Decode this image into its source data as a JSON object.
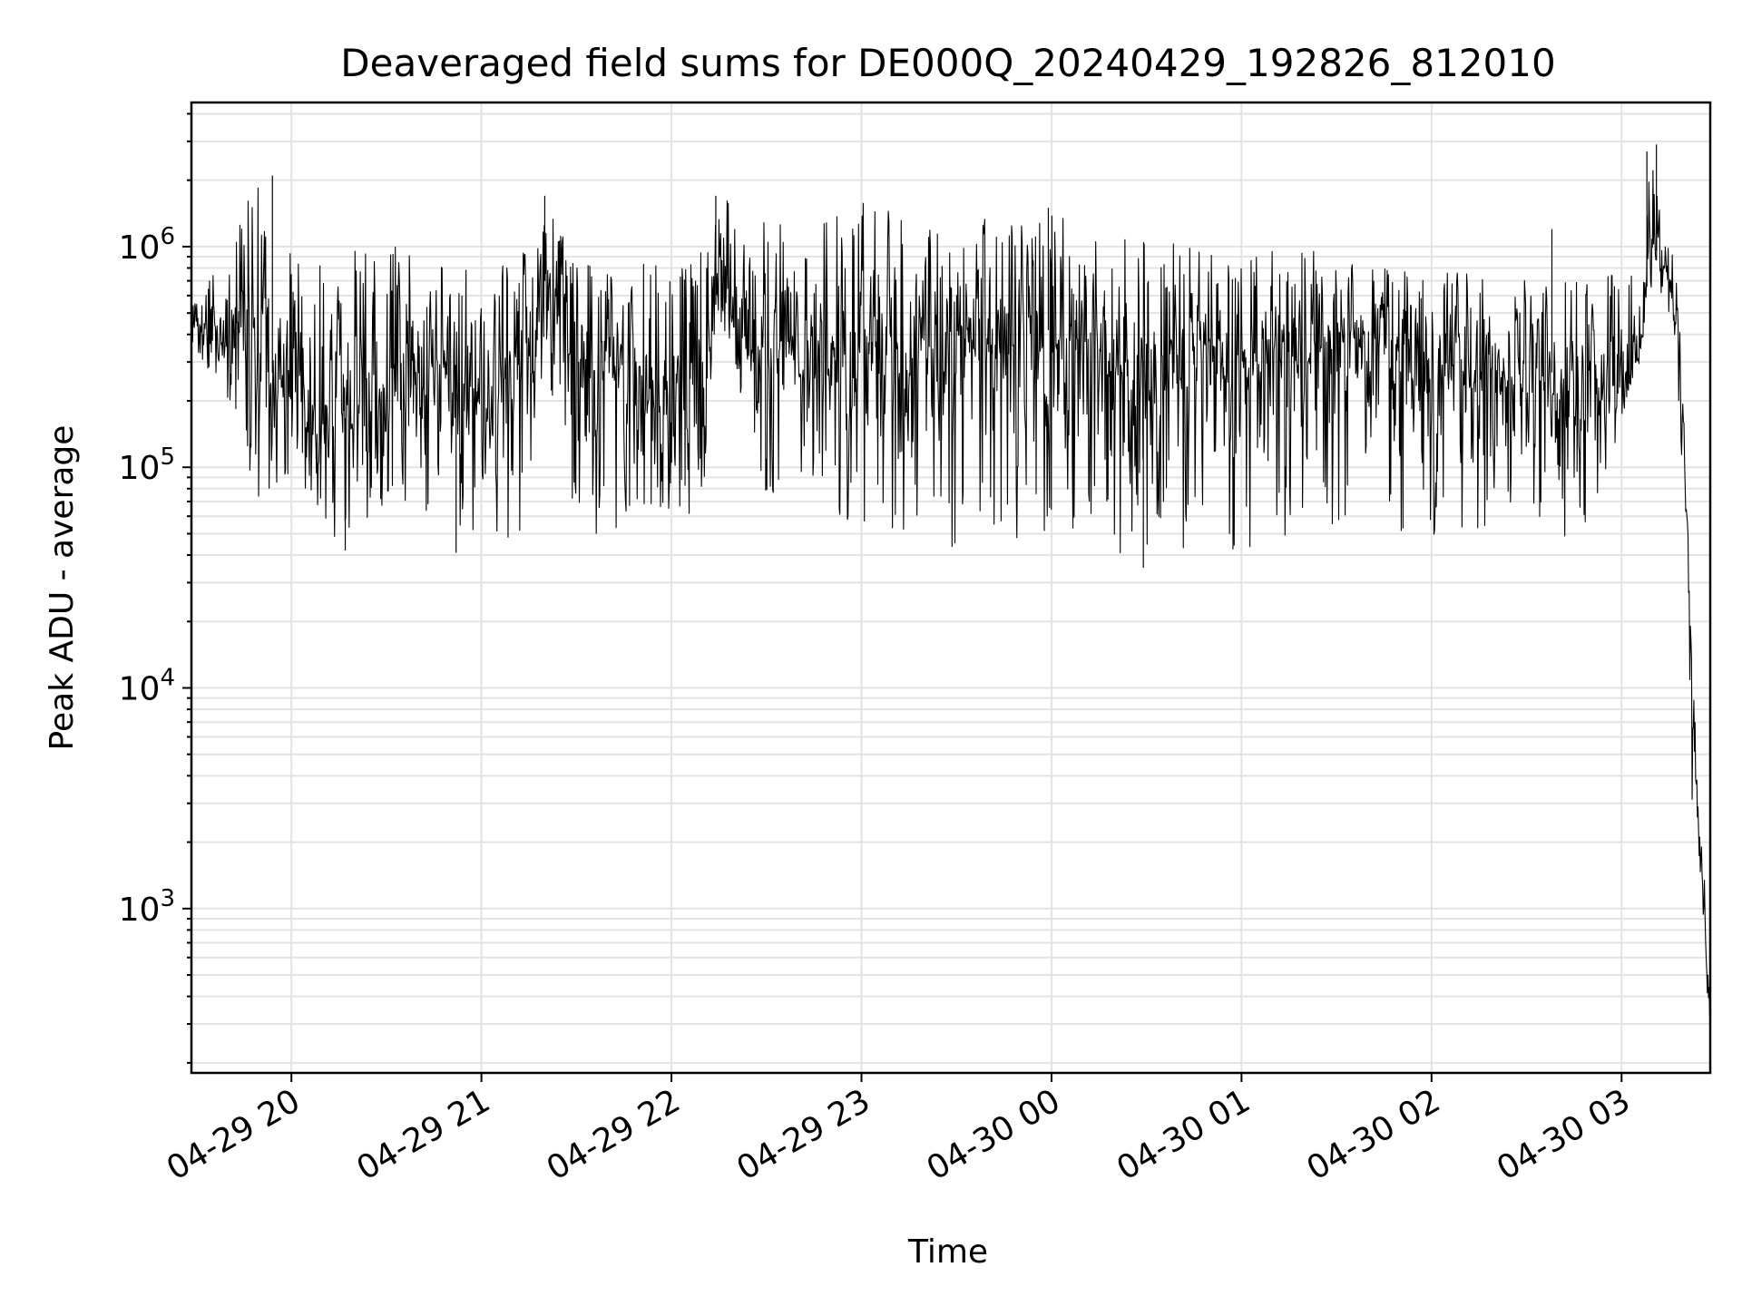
{
  "chart_data": {
    "type": "line",
    "title": "Deaveraged field sums for DE000Q_20240429_192826_812010",
    "xlabel": "Time",
    "ylabel": "Peak ADU - average",
    "x_ticks": [
      "04-29 20",
      "04-29 21",
      "04-29 22",
      "04-29 23",
      "04-30 00",
      "04-30 01",
      "04-30 02",
      "04-30 03"
    ],
    "x_tick_times": [
      "2024-04-29T20:00",
      "2024-04-29T21:00",
      "2024-04-29T22:00",
      "2024-04-29T23:00",
      "2024-04-30T00:00",
      "2024-04-30T01:00",
      "2024-04-30T02:00",
      "2024-04-30T03:00"
    ],
    "xlim": [
      "2024-04-29T19:28:26",
      "2024-04-30T03:28:00"
    ],
    "y_scale": "log",
    "y_ticks": [
      {
        "base": "10",
        "exp": "3",
        "value": 1000
      },
      {
        "base": "10",
        "exp": "4",
        "value": 10000
      },
      {
        "base": "10",
        "exp": "5",
        "value": 100000
      },
      {
        "base": "10",
        "exp": "6",
        "value": 1000000
      }
    ],
    "ylim": [
      180,
      4500000
    ],
    "grid": true,
    "line_color": "#000000",
    "series": [
      {
        "x": [
          "2024-04-29T19:28:26",
          "2024-04-29T19:35",
          "2024-04-29T19:42",
          "2024-04-29T19:50",
          "2024-04-29T19:55",
          "2024-04-29T20:05",
          "2024-04-29T20:15",
          "2024-04-29T20:30",
          "2024-04-29T20:45",
          "2024-04-29T21:00",
          "2024-04-29T21:15",
          "2024-04-29T21:20",
          "2024-04-29T21:30",
          "2024-04-29T21:45",
          "2024-04-29T22:00",
          "2024-04-29T22:10",
          "2024-04-29T22:15",
          "2024-04-29T22:30",
          "2024-04-29T22:45",
          "2024-04-29T23:00",
          "2024-04-29T23:15",
          "2024-04-29T23:30",
          "2024-04-29T23:45",
          "2024-04-30T00:00",
          "2024-04-30T00:15",
          "2024-04-30T00:30",
          "2024-04-30T00:45",
          "2024-04-30T01:00",
          "2024-04-30T01:15",
          "2024-04-30T01:30",
          "2024-04-30T01:45",
          "2024-04-30T02:00",
          "2024-04-30T02:15",
          "2024-04-30T02:30",
          "2024-04-30T02:45",
          "2024-04-30T02:55",
          "2024-04-30T03:05",
          "2024-04-30T03:10",
          "2024-04-30T03:15",
          "2024-04-30T03:18",
          "2024-04-30T03:20",
          "2024-04-30T03:22",
          "2024-04-30T03:25",
          "2024-04-30T03:28"
        ],
        "mid": [
          450000,
          420000,
          400000,
          350000,
          250000,
          180000,
          160000,
          220000,
          250000,
          180000,
          300000,
          700000,
          350000,
          300000,
          180000,
          200000,
          700000,
          300000,
          300000,
          320000,
          330000,
          350000,
          400000,
          420000,
          350000,
          300000,
          280000,
          300000,
          320000,
          350000,
          300000,
          280000,
          280000,
          280000,
          260000,
          260000,
          350000,
          1000000,
          800000,
          400000,
          100000,
          10000,
          1500,
          300
        ],
        "high": [
          550000,
          800000,
          1200000,
          2100000,
          1000000,
          900000,
          1000000,
          1100000,
          1000000,
          700000,
          1000000,
          1700000,
          900000,
          900000,
          800000,
          1000000,
          1700000,
          1300000,
          1400000,
          1600000,
          1500000,
          1400000,
          1300000,
          1500000,
          1100000,
          1100000,
          1000000,
          900000,
          1000000,
          950000,
          800000,
          750000,
          800000,
          700000,
          700000,
          850000,
          900000,
          2900000,
          1200000,
          600000,
          150000,
          15000,
          2500,
          500
        ],
        "low": [
          380000,
          250000,
          150000,
          70000,
          80000,
          80000,
          42000,
          65000,
          50000,
          42000,
          50000,
          300000,
          50000,
          50000,
          60000,
          60000,
          500000,
          60000,
          55000,
          55000,
          50000,
          42000,
          45000,
          50000,
          45000,
          35000,
          45000,
          42000,
          45000,
          50000,
          48000,
          46000,
          50000,
          55000,
          45000,
          80000,
          250000,
          700000,
          500000,
          200000,
          60000,
          3000,
          700,
          280
        ],
        "spikes": [
          {
            "t": "2024-04-29T19:54",
            "v": 2100000
          },
          {
            "t": "2024-04-29T21:20",
            "v": 1700000
          },
          {
            "t": "2024-04-29T22:14",
            "v": 1700000
          },
          {
            "t": "2024-04-29T23:59",
            "v": 1500000
          },
          {
            "t": "2024-04-30T02:38",
            "v": 1200000
          },
          {
            "t": "2024-04-30T03:08",
            "v": 2700000
          },
          {
            "t": "2024-04-30T03:11",
            "v": 2900000
          },
          {
            "t": "2024-04-29T20:17",
            "v": 42000
          },
          {
            "t": "2024-04-29T20:52",
            "v": 41000
          },
          {
            "t": "2024-04-30T00:29",
            "v": 35000
          }
        ]
      }
    ]
  }
}
